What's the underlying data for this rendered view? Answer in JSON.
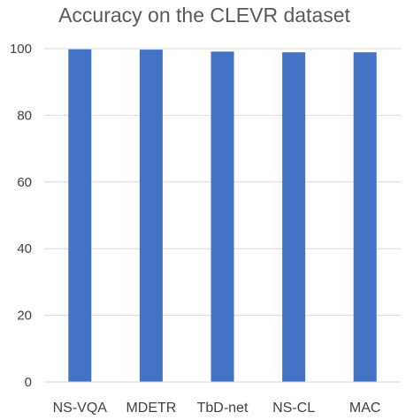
{
  "chart_data": {
    "type": "bar",
    "title": "Accuracy on the CLEVR dataset",
    "xlabel": "",
    "ylabel": "",
    "categories": [
      "NS-VQA",
      "MDETR",
      "TbD-net",
      "NS-CL",
      "MAC"
    ],
    "values": [
      99.8,
      99.7,
      99.1,
      98.9,
      98.9
    ],
    "ylim": [
      0,
      100
    ],
    "yticks": [
      0,
      20,
      40,
      60,
      80,
      100
    ],
    "grid": true,
    "legend": "none",
    "bar_color": "#4472c4"
  }
}
